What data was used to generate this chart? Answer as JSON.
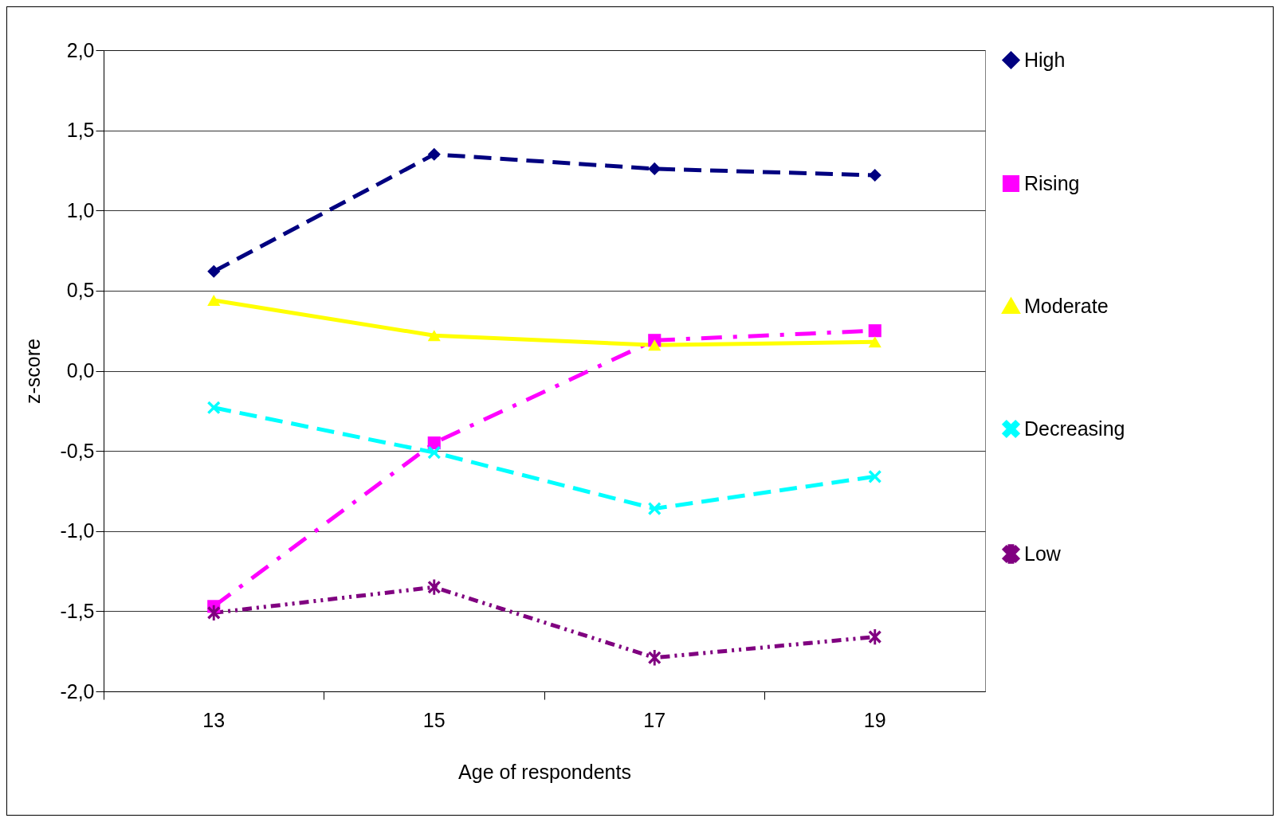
{
  "chart_data": {
    "type": "line",
    "xlabel": "Age of respondents",
    "ylabel": "z-score",
    "categories": [
      "13",
      "15",
      "17",
      "19"
    ],
    "ylim": [
      -2,
      2
    ],
    "yticks": [
      {
        "value": -2,
        "label": "-2,0"
      },
      {
        "value": -1.5,
        "label": "-1,5"
      },
      {
        "value": -1,
        "label": "-1,0"
      },
      {
        "value": -0.5,
        "label": "-0,5"
      },
      {
        "value": 0,
        "label": "0,0"
      },
      {
        "value": 0.5,
        "label": "0,5"
      },
      {
        "value": 1,
        "label": "1,0"
      },
      {
        "value": 1.5,
        "label": "1,5"
      },
      {
        "value": 2,
        "label": "2,0"
      }
    ],
    "grid": "y",
    "legend": "right",
    "series": [
      {
        "name": "High",
        "color": "#000080",
        "marker": "diamond",
        "line_style": "dashed",
        "values": [
          0.62,
          1.35,
          1.26,
          1.22
        ]
      },
      {
        "name": "Rising",
        "color": "#ff00ff",
        "marker": "square",
        "line_style": "dashdot",
        "values": [
          -1.47,
          -0.45,
          0.19,
          0.25
        ]
      },
      {
        "name": "Moderate",
        "color": "#ffff00",
        "marker": "triangle",
        "line_style": "solid",
        "values": [
          0.44,
          0.22,
          0.16,
          0.18
        ]
      },
      {
        "name": "Decreasing",
        "color": "#00ffff",
        "marker": "cross",
        "line_style": "dashed",
        "values": [
          -0.23,
          -0.51,
          -0.86,
          -0.66
        ]
      },
      {
        "name": "Low",
        "color": "#800080",
        "marker": "star",
        "line_style": "dashdotdot",
        "values": [
          -1.51,
          -1.35,
          -1.79,
          -1.66
        ]
      }
    ]
  }
}
